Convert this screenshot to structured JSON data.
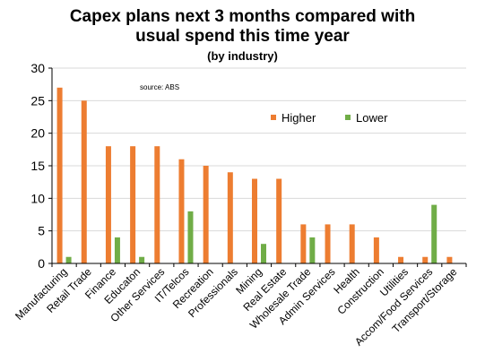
{
  "chart_data": {
    "type": "bar",
    "title_line1": "Capex plans next 3 months compared with",
    "title_line2": "usual spend this time year",
    "subtitle": "(by industry)",
    "source_note": "source:  ABS",
    "xlabel": "",
    "ylabel": "",
    "ylim": [
      0,
      30
    ],
    "yticks": [
      0,
      5,
      10,
      15,
      20,
      25,
      30
    ],
    "grid": true,
    "legend_position": "upper-right",
    "categories": [
      "Manufacturing",
      "Retail Trade",
      "Finance",
      "Educaton",
      "Other Services",
      "IT/Telcos",
      "Recreation",
      "Professionals",
      "Mining",
      "Real Estate",
      "Wholesale Trade",
      "Admin Services",
      "Health",
      "Construction",
      "Utilities",
      "Accom/Food Services",
      "Transport/Storage"
    ],
    "series": [
      {
        "name": "Higher",
        "color": "#ed7d31",
        "values": [
          27,
          25,
          18,
          18,
          18,
          16,
          15,
          14,
          13,
          13,
          6,
          6,
          6,
          4,
          1,
          1,
          1
        ]
      },
      {
        "name": "Lower",
        "color": "#70ad47",
        "values": [
          1,
          0,
          4,
          1,
          0,
          8,
          0,
          0,
          3,
          0,
          4,
          0,
          0,
          0,
          0,
          9,
          0
        ]
      }
    ]
  }
}
